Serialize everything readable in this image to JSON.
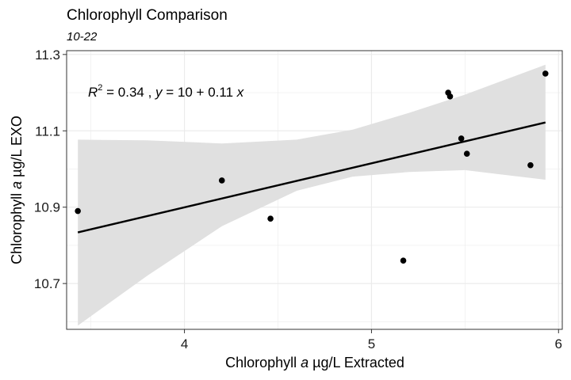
{
  "chart_data": {
    "type": "scatter",
    "title": "Chlorophyll Comparison",
    "subtitle": "10-22",
    "xlabel": {
      "pre": "Chlorophyll ",
      "ital": "a",
      "post": " µg/L Extracted"
    },
    "ylabel": {
      "pre": "Chlorophyll ",
      "ital": "a",
      "post": " µg/L EXO"
    },
    "xlim": [
      3.37,
      6.02
    ],
    "ylim": [
      10.58,
      11.31
    ],
    "x_ticks": [
      4,
      5,
      6
    ],
    "x_tick_labels": [
      "4",
      "5",
      "6"
    ],
    "y_ticks": [
      10.7,
      10.9,
      11.1,
      11.3
    ],
    "y_tick_labels": [
      "10.7",
      "10.9",
      "11.1",
      "11.3"
    ],
    "grid": true,
    "points": [
      {
        "x": 3.43,
        "y": 10.89
      },
      {
        "x": 4.2,
        "y": 10.97
      },
      {
        "x": 4.46,
        "y": 10.87
      },
      {
        "x": 5.17,
        "y": 10.76
      },
      {
        "x": 5.41,
        "y": 11.2
      },
      {
        "x": 5.42,
        "y": 11.19
      },
      {
        "x": 5.48,
        "y": 11.08
      },
      {
        "x": 5.51,
        "y": 11.04
      },
      {
        "x": 5.85,
        "y": 11.01
      },
      {
        "x": 5.93,
        "y": 11.25
      }
    ],
    "fit_line": {
      "x": [
        3.43,
        5.93
      ],
      "y": [
        10.834,
        11.122
      ]
    },
    "confidence_band": {
      "x": [
        3.43,
        3.8,
        4.2,
        4.6,
        4.9,
        5.2,
        5.5,
        5.93
      ],
      "upper": [
        11.077,
        11.075,
        11.067,
        11.077,
        11.103,
        11.147,
        11.195,
        11.273
      ],
      "lower": [
        10.59,
        10.72,
        10.85,
        10.943,
        10.98,
        10.992,
        10.997,
        10.972
      ]
    },
    "annotation": {
      "r2_label": "R",
      "r2_sup": "2",
      "r2_value": " = 0.34 ,  ",
      "eq_y": "y",
      "eq_mid": " = 10 + 0.11 ",
      "eq_x": "x"
    },
    "colors": {
      "points": "#000000",
      "line": "#000000",
      "band": "#e0e0e0",
      "grid": "#ebebeb",
      "panel_border": "#333333"
    }
  }
}
